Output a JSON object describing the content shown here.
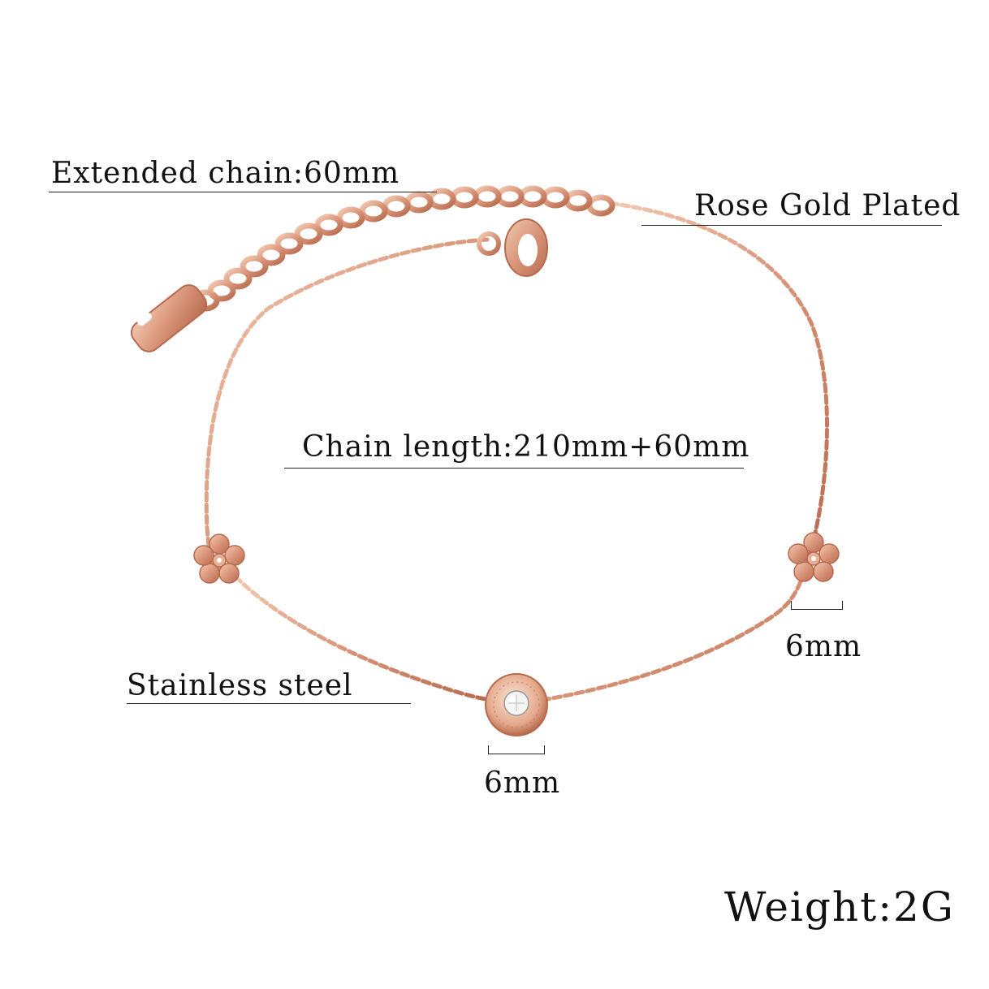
{
  "annotations": {
    "extended_chain": "Extended chain:60mm",
    "rose_gold": "Rose Gold Plated",
    "chain_length": "Chain length:210mm+60mm",
    "stainless_steel": "Stainless steel",
    "flower_size": "6mm",
    "charm_size": "6mm",
    "weight": "Weight:2G"
  },
  "colors": {
    "rose_gold": "#d9967a",
    "rose_gold_dark": "#b86a4e",
    "rose_gold_light": "#f3c9b2"
  }
}
